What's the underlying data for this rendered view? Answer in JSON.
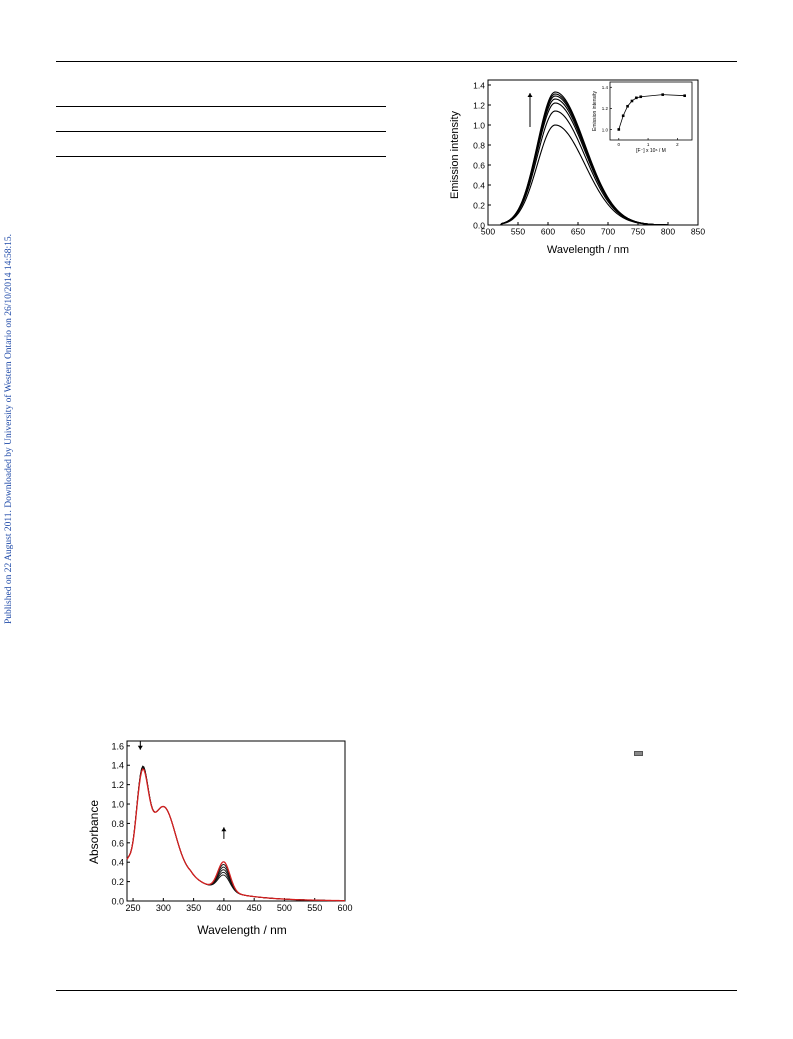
{
  "side_note": "Published on 22 August 2011. Downloaded by University of Western Ontario on 26/10/2014 14:58:15.",
  "chart_data": [
    {
      "type": "line",
      "title": "",
      "xlabel": "Wavelength / nm",
      "ylabel": "Emission intensity",
      "xlim": [
        500,
        850
      ],
      "ylim": [
        0.0,
        1.45
      ],
      "x_ticks": [
        "500",
        "550",
        "600",
        "650",
        "700",
        "750",
        "800",
        "850"
      ],
      "y_ticks": [
        "0.0",
        "0.2",
        "0.4",
        "0.6",
        "0.8",
        "1.0",
        "1.2",
        "1.4"
      ],
      "grid": false,
      "peak_nm": 612,
      "series_peaks": [
        1.0,
        1.14,
        1.22,
        1.26,
        1.29,
        1.31,
        1.33
      ],
      "arrow": "up",
      "inset": {
        "type": "scatter",
        "xlabel": "[F⁻] x 10⁶ / M",
        "ylabel": "Emission intensity",
        "x_ticks": [
          "0",
          "1",
          "2"
        ],
        "y_ticks": [
          "1.0",
          "1.2",
          "1.4"
        ],
        "xlim": [
          -0.3,
          2.5
        ],
        "ylim": [
          0.9,
          1.45
        ],
        "x": [
          0.0,
          0.15,
          0.3,
          0.45,
          0.6,
          0.75,
          1.5,
          2.25
        ],
        "y": [
          1.0,
          1.13,
          1.22,
          1.27,
          1.3,
          1.31,
          1.33,
          1.32
        ]
      }
    },
    {
      "type": "line",
      "title": "",
      "xlabel": "Wavelength / nm",
      "ylabel": "Absorbance",
      "xlim": [
        240,
        600
      ],
      "ylim": [
        0.0,
        1.65
      ],
      "x_ticks": [
        "250",
        "300",
        "350",
        "400",
        "450",
        "500",
        "550",
        "600"
      ],
      "y_ticks": [
        "0.0",
        "0.2",
        "0.4",
        "0.6",
        "0.8",
        "1.0",
        "1.2",
        "1.4",
        "1.6"
      ],
      "grid": false,
      "band_400_peaks": [
        0.5,
        0.52,
        0.54,
        0.56,
        0.58,
        0.6
      ],
      "band_265_peaks": [
        1.57,
        1.56,
        1.55,
        1.54,
        1.53,
        1.52
      ],
      "final_series_color": "#d42020",
      "arrows": [
        "down",
        "up"
      ]
    }
  ]
}
